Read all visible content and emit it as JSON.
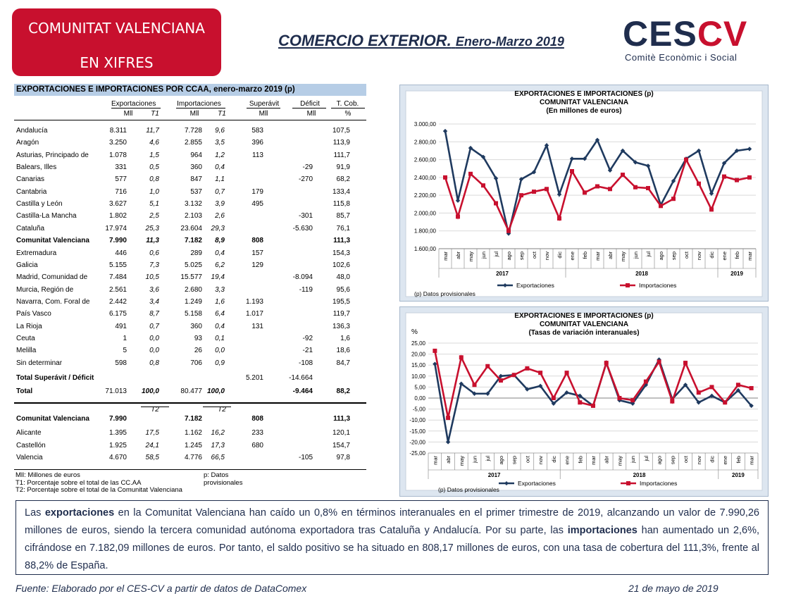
{
  "header": {
    "badge_line1": "COMUNITAT VALENCIANA",
    "badge_line2": "EN XIFRES",
    "title_main": "COMERCIO EXTERIOR.",
    "title_sub": "Enero-Marzo 2019",
    "logo_ces": "CES",
    "logo_cv": "CV",
    "logo_sub": "Comitè Econòmic i Social"
  },
  "table": {
    "title": "EXPORTACIONES  E  IMPORTACIONES POR CCAA,  enero-marzo 2019 (p)",
    "group_headers": [
      "Exportaciones",
      "Importaciones",
      "Superávit",
      "Déficit",
      "T. Cob."
    ],
    "sub_headers": [
      "Mll",
      "T1",
      "Mll",
      "T1",
      "Mll",
      "Mll",
      "%"
    ],
    "rows": [
      {
        "name": "Andalucía",
        "exp": "8.311",
        "exp_t": "11,7",
        "imp": "7.728",
        "imp_t": "9,6",
        "sup": "583",
        "def": "",
        "cob": "107,5"
      },
      {
        "name": "Aragón",
        "exp": "3.250",
        "exp_t": "4,6",
        "imp": "2.855",
        "imp_t": "3,5",
        "sup": "396",
        "def": "",
        "cob": "113,9"
      },
      {
        "name": "Asturias, Principado de",
        "exp": "1.078",
        "exp_t": "1,5",
        "imp": "964",
        "imp_t": "1,2",
        "sup": "113",
        "def": "",
        "cob": "111,7"
      },
      {
        "name": "Balears, Illes",
        "exp": "331",
        "exp_t": "0,5",
        "imp": "360",
        "imp_t": "0,4",
        "sup": "",
        "def": "-29",
        "cob": "91,9"
      },
      {
        "name": "Canarias",
        "exp": "577",
        "exp_t": "0,8",
        "imp": "847",
        "imp_t": "1,1",
        "sup": "",
        "def": "-270",
        "cob": "68,2"
      },
      {
        "name": "Cantabria",
        "exp": "716",
        "exp_t": "1,0",
        "imp": "537",
        "imp_t": "0,7",
        "sup": "179",
        "def": "",
        "cob": "133,4"
      },
      {
        "name": "Castilla y León",
        "exp": "3.627",
        "exp_t": "5,1",
        "imp": "3.132",
        "imp_t": "3,9",
        "sup": "495",
        "def": "",
        "cob": "115,8"
      },
      {
        "name": "Castilla-La Mancha",
        "exp": "1.802",
        "exp_t": "2,5",
        "imp": "2.103",
        "imp_t": "2,6",
        "sup": "",
        "def": "-301",
        "cob": "85,7"
      },
      {
        "name": "Cataluña",
        "exp": "17.974",
        "exp_t": "25,3",
        "imp": "23.604",
        "imp_t": "29,3",
        "sup": "",
        "def": "-5.630",
        "cob": "76,1"
      },
      {
        "name": "Comunitat Valenciana",
        "exp": "7.990",
        "exp_t": "11,3",
        "imp": "7.182",
        "imp_t": "8,9",
        "sup": "808",
        "def": "",
        "cob": "111,3",
        "bold": true
      },
      {
        "name": "Extremadura",
        "exp": "446",
        "exp_t": "0,6",
        "imp": "289",
        "imp_t": "0,4",
        "sup": "157",
        "def": "",
        "cob": "154,3"
      },
      {
        "name": "Galicia",
        "exp": "5.155",
        "exp_t": "7,3",
        "imp": "5.025",
        "imp_t": "6,2",
        "sup": "129",
        "def": "",
        "cob": "102,6"
      },
      {
        "name": "Madrid, Comunidad de",
        "exp": "7.484",
        "exp_t": "10,5",
        "imp": "15.577",
        "imp_t": "19,4",
        "sup": "",
        "def": "-8.094",
        "cob": "48,0"
      },
      {
        "name": "Murcia, Región de",
        "exp": "2.561",
        "exp_t": "3,6",
        "imp": "2.680",
        "imp_t": "3,3",
        "sup": "",
        "def": "-119",
        "cob": "95,6"
      },
      {
        "name": "Navarra, Com. Foral de",
        "exp": "2.442",
        "exp_t": "3,4",
        "imp": "1.249",
        "imp_t": "1,6",
        "sup": "1.193",
        "def": "",
        "cob": "195,5"
      },
      {
        "name": "País Vasco",
        "exp": "6.175",
        "exp_t": "8,7",
        "imp": "5.158",
        "imp_t": "6,4",
        "sup": "1.017",
        "def": "",
        "cob": "119,7"
      },
      {
        "name": "La Rioja",
        "exp": "491",
        "exp_t": "0,7",
        "imp": "360",
        "imp_t": "0,4",
        "sup": "131",
        "def": "",
        "cob": "136,3"
      },
      {
        "name": "Ceuta",
        "exp": "1",
        "exp_t": "0,0",
        "imp": "93",
        "imp_t": "0,1",
        "sup": "",
        "def": "-92",
        "cob": "1,6"
      },
      {
        "name": "Melilla",
        "exp": "5",
        "exp_t": "0,0",
        "imp": "26",
        "imp_t": "0,0",
        "sup": "",
        "def": "-21",
        "cob": "18,6"
      },
      {
        "name": "Sin determinar",
        "exp": "598",
        "exp_t": "0,8",
        "imp": "706",
        "imp_t": "0,9",
        "sup": "",
        "def": "-108",
        "cob": "84,7"
      }
    ],
    "total_sup_def": {
      "name": "Total Superávit /  Déficit",
      "sup": "5.201",
      "def": "-14.664"
    },
    "total": {
      "name": "Total",
      "exp": "71.013",
      "exp_t": "100,0",
      "imp": "80.477",
      "imp_t": "100,0",
      "def": "-9.464",
      "cob": "88,2"
    },
    "t2_header": "T2",
    "provinces": [
      {
        "name": "Comunitat Valenciana",
        "exp": "7.990",
        "exp_t": "",
        "imp": "7.182",
        "imp_t": "",
        "sup": "808",
        "def": "",
        "cob": "111,3",
        "bold": true
      },
      {
        "name": "Alicante",
        "exp": "1.395",
        "exp_t": "17,5",
        "imp": "1.162",
        "imp_t": "16,2",
        "sup": "233",
        "def": "",
        "cob": "120,1"
      },
      {
        "name": "Castellón",
        "exp": "1.925",
        "exp_t": "24,1",
        "imp": "1.245",
        "imp_t": "17,3",
        "sup": "680",
        "def": "",
        "cob": "154,7"
      },
      {
        "name": "Valencia",
        "exp": "4.670",
        "exp_t": "58,5",
        "imp": "4.776",
        "imp_t": "66,5",
        "sup": "",
        "def": "-105",
        "cob": "97,8"
      }
    ],
    "notes": {
      "mll": "Mll:  Millones de euros",
      "p": "p: Datos provisionales",
      "t1": "T1:  Porcentaje sobre el total de las CC.AA",
      "t2": "T2:  Porcentaje sobre el total de la Comunitat Valenciana"
    }
  },
  "chart_data": [
    {
      "type": "line",
      "title": "EXPORTACIONES E IMPORTACIONES (p)",
      "subtitle1": "COMUNITAT VALENCIANA",
      "subtitle2": "(En millones de euros)",
      "ylabel": "",
      "ylim": [
        1600,
        3000
      ],
      "yticks": [
        "3.000,00",
        "2.800,00",
        "2.600,00",
        "2.400,00",
        "2.200,00",
        "2.000,00",
        "1.800,00",
        "1.600,00"
      ],
      "categories": [
        "mar",
        "abr",
        "may",
        "jun",
        "jul",
        "ago",
        "sep",
        "oct",
        "nov",
        "dic",
        "ene",
        "feb",
        "mar",
        "abr",
        "may",
        "jun",
        "jul",
        "ago",
        "sep",
        "oct",
        "nov",
        "dic",
        "ene",
        "feb",
        "mar"
      ],
      "years": [
        {
          "label": "2017",
          "from": 0,
          "to": 9
        },
        {
          "label": "2018",
          "from": 10,
          "to": 21
        },
        {
          "label": "2019",
          "from": 22,
          "to": 24
        }
      ],
      "series": [
        {
          "name": "Exportaciones",
          "color": "#1f3a5f",
          "values": [
            2920,
            2140,
            2730,
            2630,
            2390,
            1770,
            2380,
            2460,
            2760,
            2210,
            2610,
            2610,
            2820,
            2480,
            2700,
            2570,
            2530,
            2090,
            2360,
            2610,
            2700,
            2220,
            2560,
            2700,
            2720
          ]
        },
        {
          "name": "Importaciones",
          "color": "#c8102e",
          "values": [
            2400,
            1960,
            2440,
            2310,
            2110,
            1800,
            2200,
            2240,
            2270,
            1940,
            2470,
            2230,
            2300,
            2270,
            2430,
            2290,
            2280,
            2080,
            2160,
            2600,
            2330,
            2040,
            2410,
            2370,
            2400
          ]
        }
      ],
      "note": "(p) Datos provisionales",
      "legend_position": "bottom",
      "grid": true
    },
    {
      "type": "line",
      "title": "EXPORTACIONES E IMPORTACIONES (p)",
      "subtitle1": "COMUNITAT VALENCIANA",
      "subtitle2": "(Tasas de variación interanuales)",
      "ylabel": "%",
      "ylim": [
        -25,
        25
      ],
      "yticks": [
        "25,00",
        "20,00",
        "15,00",
        "10,00",
        "5,00",
        "0,00",
        "-5,00",
        "-10,00",
        "-15,00",
        "-20,00",
        "-25,00"
      ],
      "categories": [
        "mar",
        "abr",
        "may",
        "jun",
        "jul",
        "ago",
        "sep",
        "oct",
        "nov",
        "dic",
        "ene",
        "feb",
        "mar",
        "abr",
        "may",
        "jun",
        "jul",
        "ago",
        "sep",
        "oct",
        "nov",
        "dic",
        "ene",
        "feb",
        "mar"
      ],
      "years": [
        {
          "label": "2017",
          "from": 0,
          "to": 9
        },
        {
          "label": "2018",
          "from": 10,
          "to": 21
        },
        {
          "label": "2019",
          "from": 22,
          "to": 24
        }
      ],
      "series": [
        {
          "name": "Exportaciones",
          "color": "#1f3a5f",
          "values": [
            15.5,
            -20.0,
            6.5,
            2.0,
            2.0,
            10.0,
            10.5,
            4.0,
            5.5,
            -2.5,
            2.5,
            1.0,
            -3.5,
            16.0,
            -1.0,
            -2.5,
            6.0,
            17.5,
            -0.5,
            6.0,
            -2.0,
            1.0,
            -2.0,
            3.5,
            -3.5
          ]
        },
        {
          "name": "Importaciones",
          "color": "#c8102e",
          "values": [
            21.5,
            -9.0,
            18.5,
            6.0,
            14.5,
            8.0,
            10.5,
            13.5,
            11.5,
            0.0,
            11.5,
            -2.0,
            -3.5,
            16.0,
            0.0,
            -1.0,
            7.5,
            16.5,
            -1.5,
            16.0,
            2.5,
            5.0,
            -2.0,
            6.0,
            4.5
          ]
        }
      ],
      "note": "(p) Datos provisionales",
      "legend_position": "bottom",
      "grid": true
    }
  ],
  "summary": {
    "s1": "Las ",
    "b1": "exportaciones",
    "s2": " en la Comunitat Valenciana han caído un 0,8% en términos interanuales en el primer trimestre de 2019, alcanzando un valor de 7.990,26 millones de euros, siendo la tercera comunidad autónoma exportadora tras Cataluña y Andalucía. Por su parte, las ",
    "b2": "importaciones",
    "s3": " han aumentado un 2,6%, cifrándose en 7.182,09 millones de euros. Por tanto, el saldo positivo se ha situado en 808,17 millones de euros, con una tasa de cobertura del 111,3%, frente al 88,2% de España."
  },
  "footer": {
    "source": "Fuente: Elaborado por el CES-CV a partir de datos de DataComex",
    "date": "21 de mayo de 2019"
  },
  "colors": {
    "brand_red": "#c8102e",
    "navy": "#1f2d4d",
    "chart_bg": "#dde6f0",
    "table_header_bg": "#b6cde6"
  }
}
